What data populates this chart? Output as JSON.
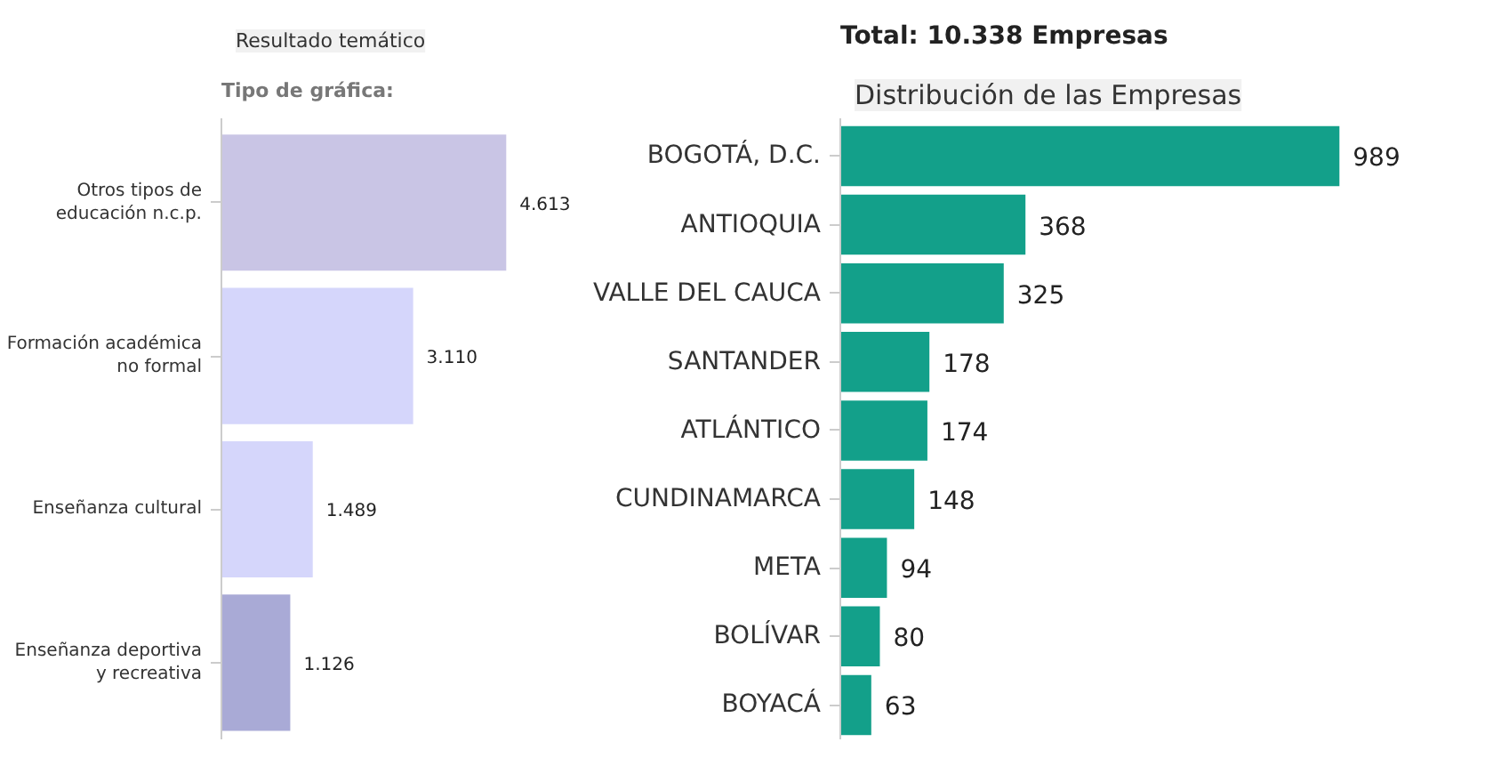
{
  "chart_data": [
    {
      "type": "bar",
      "orientation": "horizontal",
      "title": "Resultado temático",
      "subtitle": "Tipo de gráfica:",
      "categories": [
        "Otros tipos de educación n.c.p.",
        "Formación académica no formal",
        "Enseñanza cultural",
        "Enseñanza deportiva y recreativa"
      ],
      "values": [
        4613,
        3110,
        1489,
        1126
      ],
      "value_labels": [
        "4.613",
        "3.110",
        "1.489",
        "1.126"
      ],
      "colors": [
        "#c9c5e5",
        "#d5d6fb",
        "#d5d6fb",
        "#a9aad6"
      ]
    },
    {
      "type": "bar",
      "orientation": "horizontal",
      "title": "Distribución de las Empresas",
      "annotations": [
        "Total: 10.338 Empresas"
      ],
      "categories": [
        "BOGOTÁ, D.C.",
        "ANTIOQUIA",
        "VALLE DEL CAUCA",
        "SANTANDER",
        "ATLÁNTICO",
        "CUNDINAMARCA",
        "META",
        "BOLÍVAR",
        "BOYACÁ"
      ],
      "values": [
        989,
        368,
        325,
        178,
        174,
        148,
        94,
        80,
        63
      ],
      "color": "#13a08a",
      "data_labels": true
    }
  ]
}
